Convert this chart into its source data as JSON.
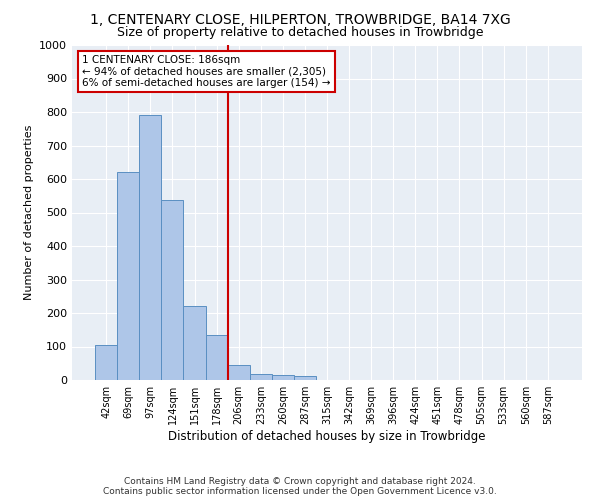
{
  "title": "1, CENTENARY CLOSE, HILPERTON, TROWBRIDGE, BA14 7XG",
  "subtitle": "Size of property relative to detached houses in Trowbridge",
  "xlabel": "Distribution of detached houses by size in Trowbridge",
  "ylabel": "Number of detached properties",
  "bin_labels": [
    "42sqm",
    "69sqm",
    "97sqm",
    "124sqm",
    "151sqm",
    "178sqm",
    "206sqm",
    "233sqm",
    "260sqm",
    "287sqm",
    "315sqm",
    "342sqm",
    "369sqm",
    "396sqm",
    "424sqm",
    "451sqm",
    "478sqm",
    "505sqm",
    "533sqm",
    "560sqm",
    "587sqm"
  ],
  "bar_heights": [
    103,
    622,
    790,
    538,
    222,
    133,
    44,
    17,
    14,
    12,
    0,
    0,
    0,
    0,
    0,
    0,
    0,
    0,
    0,
    0,
    0
  ],
  "bar_color": "#aec6e8",
  "bar_edge_color": "#5a8fc2",
  "vline_color": "#cc0000",
  "annotation_text": "1 CENTENARY CLOSE: 186sqm\n← 94% of detached houses are smaller (2,305)\n6% of semi-detached houses are larger (154) →",
  "annotation_box_color": "#ffffff",
  "annotation_box_edge": "#cc0000",
  "ylim": [
    0,
    1000
  ],
  "yticks": [
    0,
    100,
    200,
    300,
    400,
    500,
    600,
    700,
    800,
    900,
    1000
  ],
  "bg_color": "#e8eef5",
  "footer_text": "Contains HM Land Registry data © Crown copyright and database right 2024.\nContains public sector information licensed under the Open Government Licence v3.0.",
  "title_fontsize": 10,
  "subtitle_fontsize": 9
}
